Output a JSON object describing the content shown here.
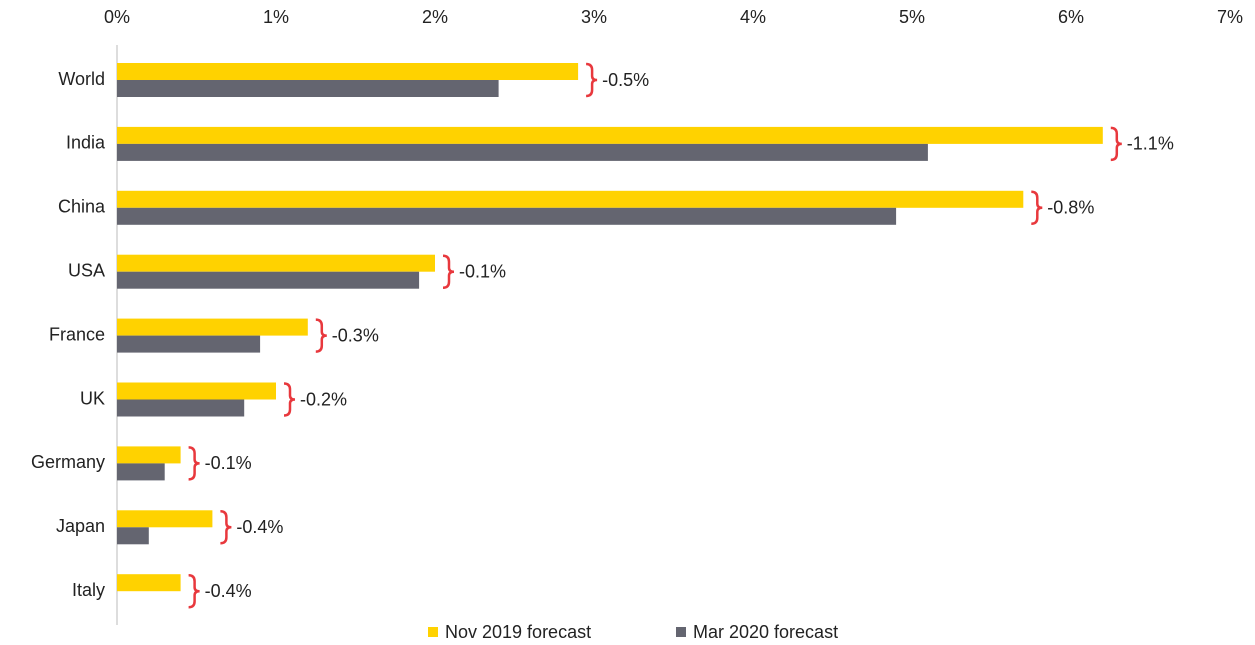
{
  "chart_data": {
    "type": "bar",
    "orientation": "horizontal",
    "categories": [
      "World",
      "India",
      "China",
      "USA",
      "France",
      "UK",
      "Germany",
      "Japan",
      "Italy"
    ],
    "series": [
      {
        "name": "Nov 2019 forecast",
        "color": "#ffd200",
        "values": [
          2.9,
          6.2,
          5.7,
          2.0,
          1.2,
          1.0,
          0.4,
          0.6,
          0.4
        ]
      },
      {
        "name": "Mar 2020 forecast",
        "color": "#646570",
        "values": [
          2.4,
          5.1,
          4.9,
          1.9,
          0.9,
          0.8,
          0.3,
          0.2,
          0
        ]
      }
    ],
    "annotations": [
      "-0.5%",
      "-1.1%",
      "-0.8%",
      "-0.1%",
      "-0.3%",
      "-0.2%",
      "-0.1%",
      "-0.4%",
      "-0.4%"
    ],
    "annotation_color": "#e8383d",
    "xlim": [
      0,
      7
    ],
    "xticks": [
      {
        "value": 0,
        "label": "0%"
      },
      {
        "value": 1,
        "label": "1%"
      },
      {
        "value": 2,
        "label": "2%"
      },
      {
        "value": 3,
        "label": "3%"
      },
      {
        "value": 4,
        "label": "4%"
      },
      {
        "value": 5,
        "label": "5%"
      },
      {
        "value": 6,
        "label": "6%"
      },
      {
        "value": 7,
        "label": "7%"
      }
    ],
    "grid": false,
    "legend": "bottom"
  }
}
